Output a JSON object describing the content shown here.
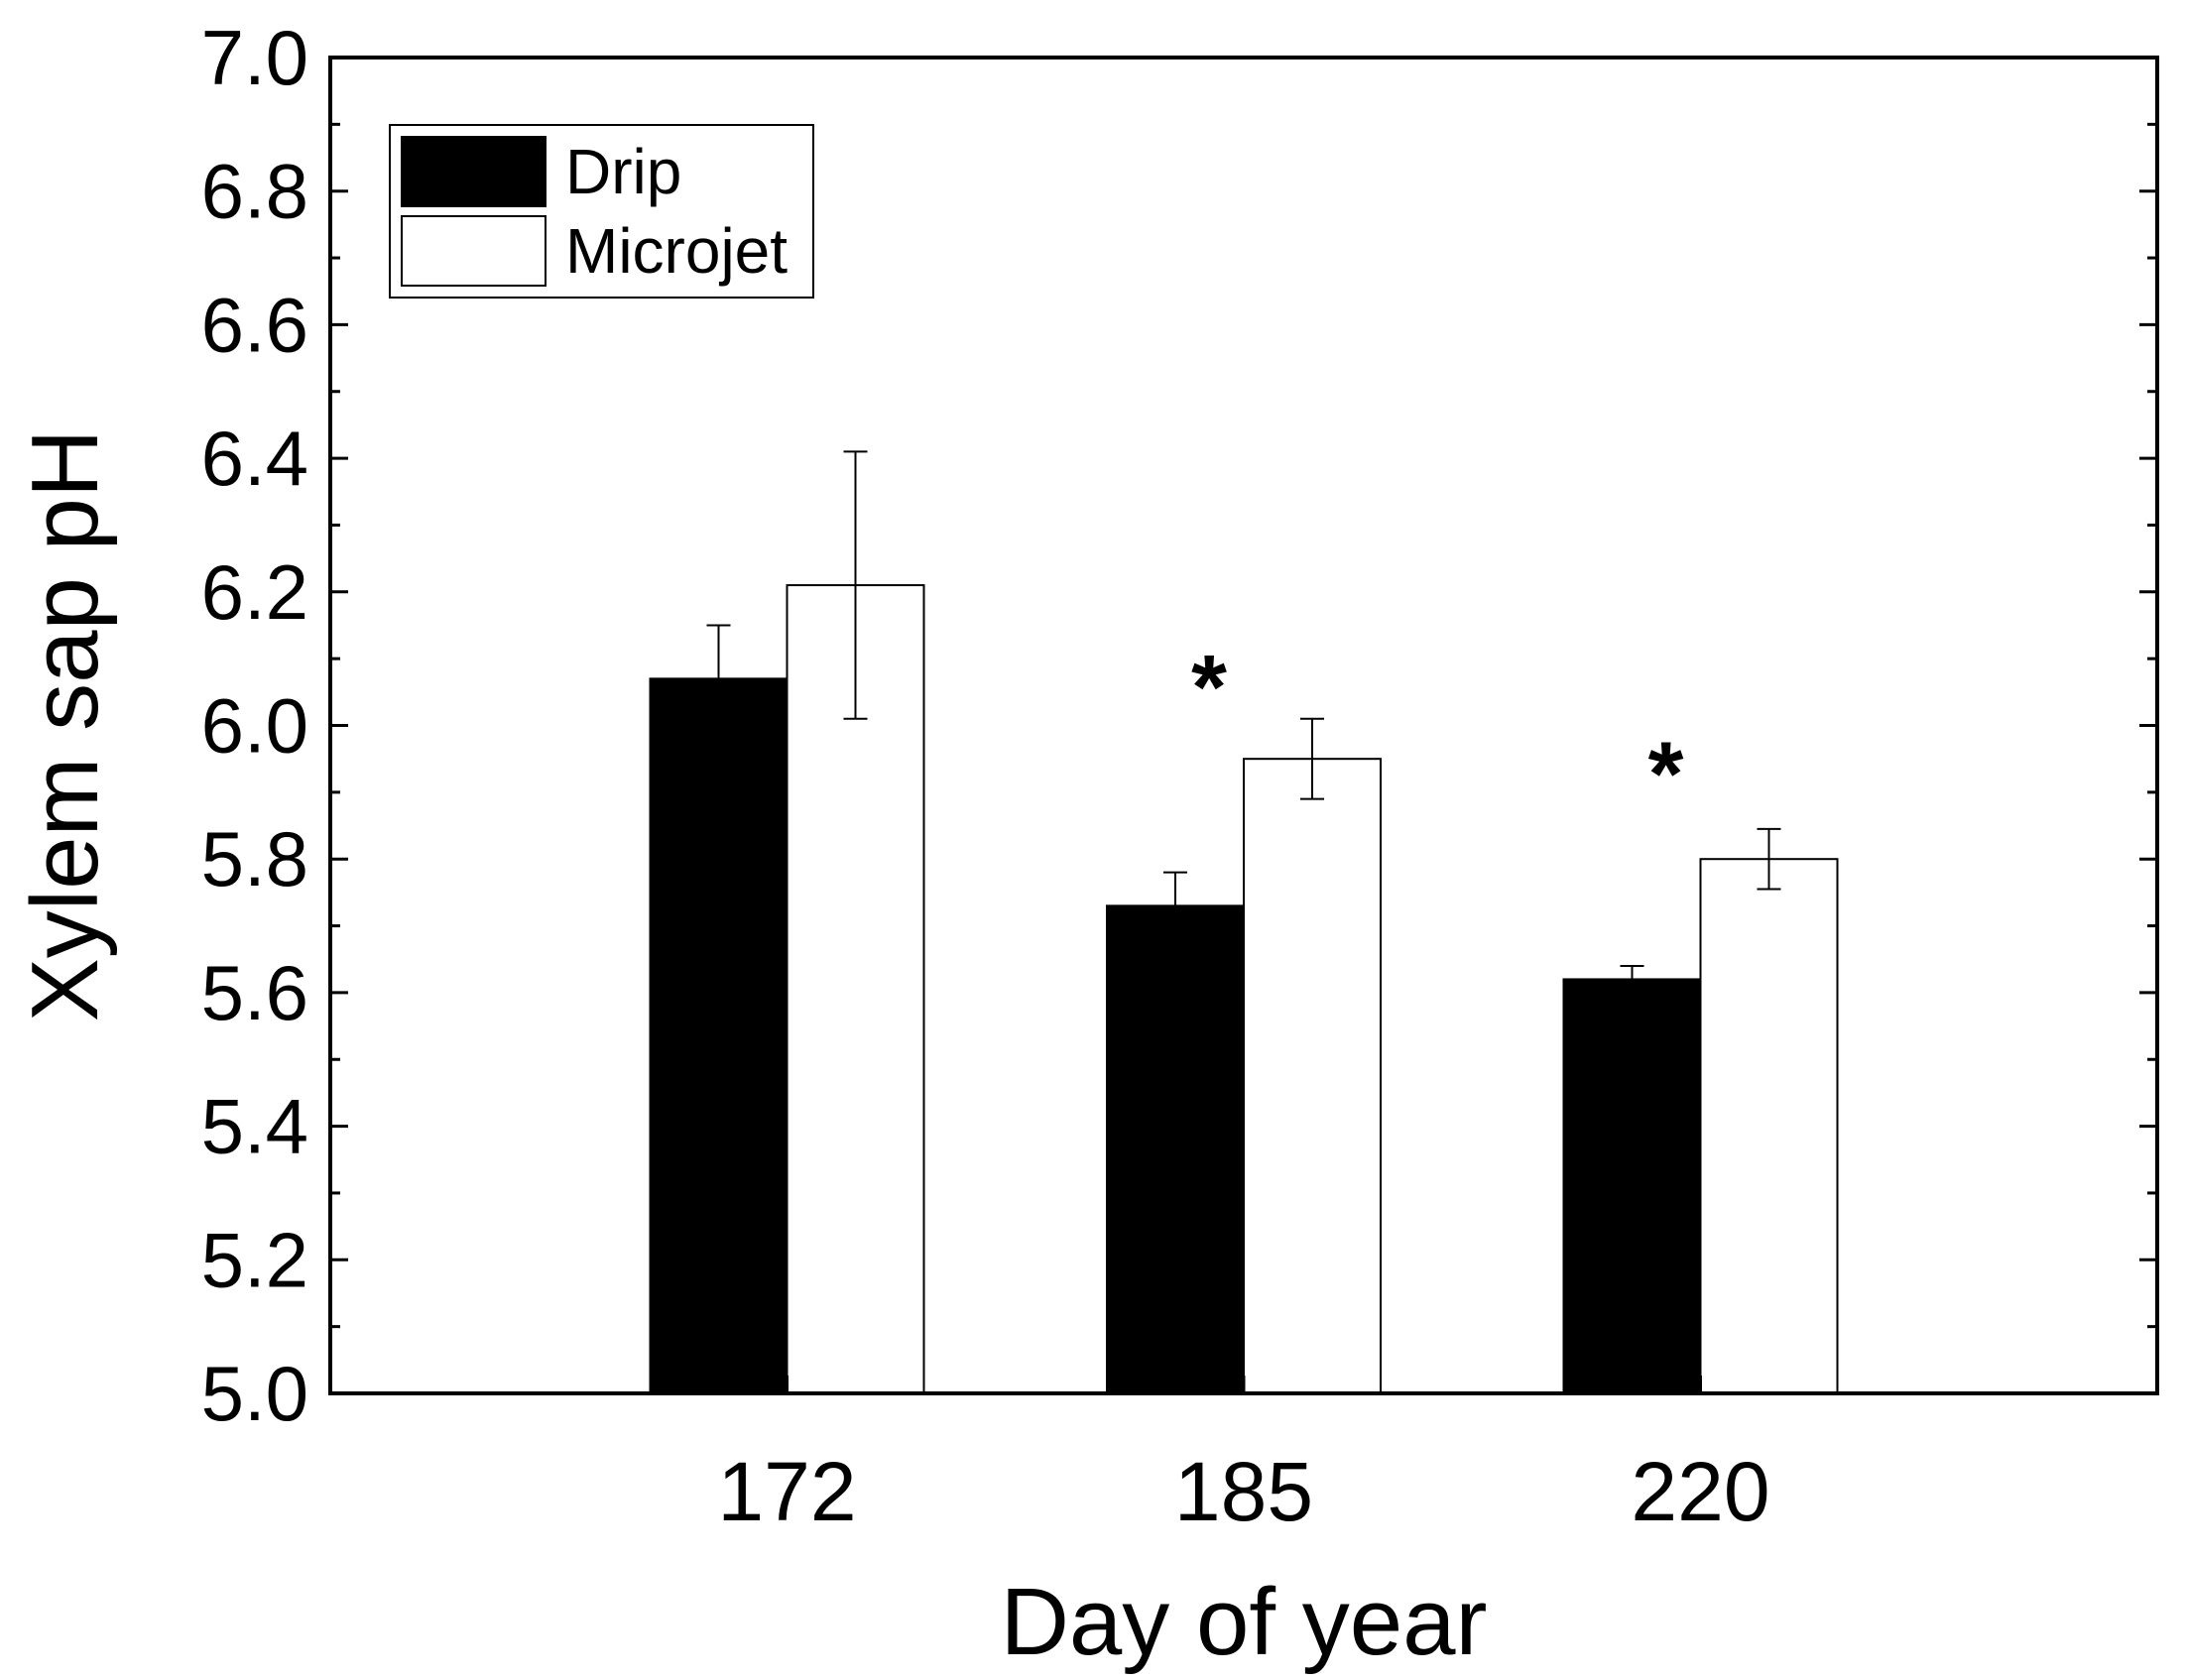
{
  "chart_data": {
    "type": "bar",
    "title": "",
    "xlabel": "Day of year",
    "ylabel": "Xylem sap pH",
    "categories": [
      "172",
      "185",
      "220"
    ],
    "ylim": [
      5.0,
      7.0
    ],
    "yticks": [
      "5.0",
      "5.2",
      "5.4",
      "5.6",
      "5.8",
      "6.0",
      "6.2",
      "6.4",
      "6.6",
      "6.8",
      "7.0"
    ],
    "series": [
      {
        "name": "Drip",
        "color": "#000000",
        "values": [
          6.07,
          5.73,
          5.62
        ],
        "errors": [
          0.08,
          0.05,
          0.02
        ]
      },
      {
        "name": "Microjet",
        "color": "#ffffff",
        "values": [
          6.21,
          5.95,
          5.8
        ],
        "errors": [
          0.2,
          0.06,
          0.045
        ]
      }
    ],
    "annotations": [
      {
        "text": "*",
        "category": "185",
        "y": 6.07
      },
      {
        "text": "*",
        "category": "220",
        "y": 5.94
      }
    ],
    "legend": {
      "position": "top-left",
      "entries": [
        "Drip",
        "Microjet"
      ]
    },
    "grid": false
  }
}
